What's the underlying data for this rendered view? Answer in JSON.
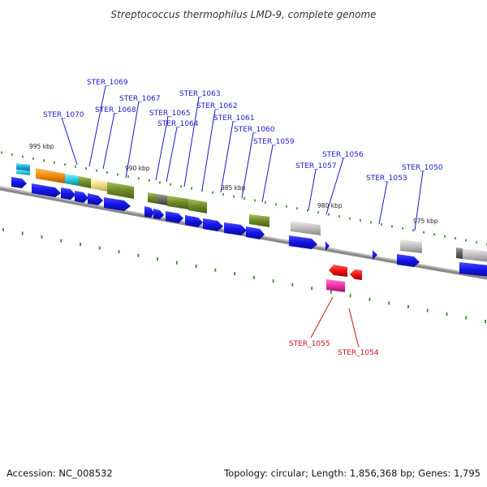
{
  "title": "Streptococcus thermophilus LMD-9, complete genome",
  "footer": {
    "accession": "Accession: NC_008532",
    "stats": "Topology: circular; Length: 1,856,368 bp; Genes: 1,795"
  },
  "scale_labels": [
    "995 kbp",
    "990 kbp",
    "985 kbp",
    "980 kbp",
    "975 kbp"
  ],
  "gene_labels_forward": [
    "STER_1070",
    "STER_1069",
    "STER_1068",
    "STER_1067",
    "STER_1065",
    "STER_1064",
    "STER_1063",
    "STER_1062",
    "STER_1061",
    "STER_1060",
    "STER_1059",
    "STER_1057",
    "STER_1056",
    "STER_1053",
    "STER_1050"
  ],
  "gene_labels_reverse": [
    "STER_1055",
    "STER_1054"
  ],
  "colors": {
    "forward_label": "#1a1acc",
    "reverse_label": "#cc1111",
    "forward_gene": "#1515e0",
    "reverse_gene": "#ee1111",
    "backbone": "#8a8a8a",
    "ticks": "#2e8b22"
  }
}
